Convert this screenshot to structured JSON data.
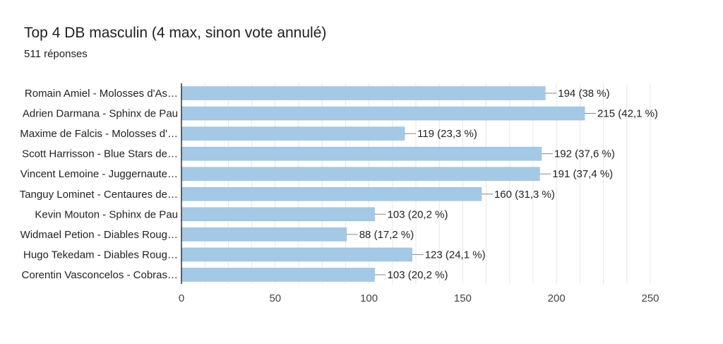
{
  "header": {
    "title": "Top 4 DB masculin (4 max, sinon vote annulé)",
    "subtitle": "511 réponses"
  },
  "colors": {
    "bar": "#a4c9e7",
    "bar_stroke": "#8db8dc",
    "grid": "#e8e8e8",
    "axis": "#333333",
    "leader": "#888888"
  },
  "chart_data": {
    "type": "bar",
    "orientation": "horizontal",
    "title": "Top 4 DB masculin (4 max, sinon vote annulé)",
    "subtitle": "511 réponses",
    "categories": [
      "Romain Amiel - Molosses d'As…",
      "Adrien Darmana - Sphinx de Pau",
      "Maxime de Falcis - Molosses d'…",
      "Scott Harrisson - Blue Stars de…",
      "Vincent Lemoine - Juggernaute…",
      "Tanguy Lominet - Centaures de…",
      "Kevin Mouton - Sphinx de Pau",
      "Widmael Petion - Diables Roug…",
      "Hugo Tekedam - Diables Roug…",
      "Corentin Vasconcelos - Cobras…"
    ],
    "values": [
      194,
      215,
      119,
      192,
      191,
      160,
      103,
      88,
      123,
      103
    ],
    "data_labels": [
      "194 (38 %)",
      "215 (42,1 %)",
      "119 (23,3 %)",
      "192 (37,6 %)",
      "191 (37,4 %)",
      "160 (31,3 %)",
      "103 (20,2 %)",
      "88 (17,2 %)",
      "123 (24,1 %)",
      "103 (20,2 %)"
    ],
    "xlim": [
      0,
      250
    ],
    "x_ticks": [
      0,
      50,
      100,
      150,
      200,
      250
    ],
    "grid": true,
    "legend": "none"
  }
}
